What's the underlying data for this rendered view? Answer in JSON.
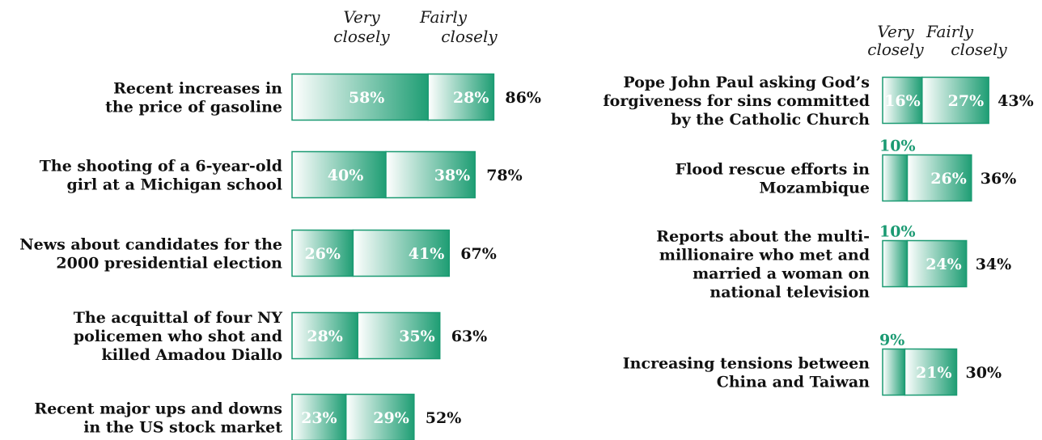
{
  "colors": {
    "bar_dark": "#1f9e74",
    "bar_light": "#ffffff",
    "bar_border": "#1a9a72",
    "label_text": "#111111",
    "outside_value": "#1a9a72"
  },
  "headers": {
    "very": [
      "Very",
      "closely"
    ],
    "fairly": [
      "Fairly",
      "closely"
    ]
  },
  "chart_data": [
    {
      "type": "bar",
      "orientation": "horizontal",
      "stacked": true,
      "series_names": [
        "Very closely",
        "Fairly closely"
      ],
      "items": [
        {
          "label": [
            "Recent increases in",
            "the price of gasoline"
          ],
          "very": 58,
          "fairly": 28,
          "total": 86,
          "very_text": "58%",
          "fairly_text": "28%",
          "total_text": "86%"
        },
        {
          "label": [
            "The shooting of a 6-year-old",
            "girl at a Michigan school"
          ],
          "very": 40,
          "fairly": 38,
          "total": 78,
          "very_text": "40%",
          "fairly_text": "38%",
          "total_text": "78%"
        },
        {
          "label": [
            "News about candidates for the",
            "2000 presidential election"
          ],
          "very": 26,
          "fairly": 41,
          "total": 67,
          "very_text": "26%",
          "fairly_text": "41%",
          "total_text": "67%"
        },
        {
          "label": [
            "The acquittal of four NY",
            "policemen who shot and",
            "killed Amadou Diallo"
          ],
          "very": 28,
          "fairly": 35,
          "total": 63,
          "very_text": "28%",
          "fairly_text": "35%",
          "total_text": "63%"
        },
        {
          "label": [
            "Recent major ups and downs",
            "in the US stock market"
          ],
          "very": 23,
          "fairly": 29,
          "total": 52,
          "very_text": "23%",
          "fairly_text": "29%",
          "total_text": "52%"
        }
      ]
    },
    {
      "type": "bar",
      "orientation": "horizontal",
      "stacked": true,
      "series_names": [
        "Very closely",
        "Fairly closely"
      ],
      "items": [
        {
          "label": [
            "Pope John Paul asking God’s",
            "forgiveness for sins committed",
            "by the Catholic Church"
          ],
          "very": 16,
          "fairly": 27,
          "total": 43,
          "very_text": "16%",
          "fairly_text": "27%",
          "total_text": "43%"
        },
        {
          "label": [
            "Flood rescue efforts in",
            "Mozambique"
          ],
          "very": 10,
          "fairly": 26,
          "total": 36,
          "very_text": "10%",
          "fairly_text": "26%",
          "total_text": "36%"
        },
        {
          "label": [
            "Reports about the multi-",
            "millionaire who met and",
            "married a woman on",
            "national television"
          ],
          "very": 10,
          "fairly": 24,
          "total": 34,
          "very_text": "10%",
          "fairly_text": "24%",
          "total_text": "34%"
        },
        {
          "label": [
            "Increasing tensions between",
            "China and Taiwan"
          ],
          "very": 9,
          "fairly": 21,
          "total": 30,
          "very_text": "9%",
          "fairly_text": "21%",
          "total_text": "30%"
        }
      ]
    }
  ]
}
